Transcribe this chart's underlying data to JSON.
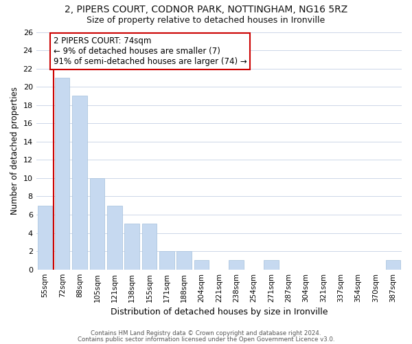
{
  "title": "2, PIPERS COURT, CODNOR PARK, NOTTINGHAM, NG16 5RZ",
  "subtitle": "Size of property relative to detached houses in Ironville",
  "xlabel": "Distribution of detached houses by size in Ironville",
  "ylabel": "Number of detached properties",
  "bar_labels": [
    "55sqm",
    "72sqm",
    "88sqm",
    "105sqm",
    "121sqm",
    "138sqm",
    "155sqm",
    "171sqm",
    "188sqm",
    "204sqm",
    "221sqm",
    "238sqm",
    "254sqm",
    "271sqm",
    "287sqm",
    "304sqm",
    "321sqm",
    "337sqm",
    "354sqm",
    "370sqm",
    "387sqm"
  ],
  "bar_values": [
    7,
    21,
    19,
    10,
    7,
    5,
    5,
    2,
    2,
    1,
    0,
    1,
    0,
    1,
    0,
    0,
    0,
    0,
    0,
    0,
    1
  ],
  "bar_color": "#c6d9f0",
  "bar_edge_color": "#adc6e0",
  "redline_x": 1,
  "redline_color": "#cc0000",
  "ylim": [
    0,
    26
  ],
  "yticks": [
    0,
    2,
    4,
    6,
    8,
    10,
    12,
    14,
    16,
    18,
    20,
    22,
    24,
    26
  ],
  "annotation_line1": "2 PIPERS COURT: 74sqm",
  "annotation_line2": "← 9% of detached houses are smaller (7)",
  "annotation_line3": "91% of semi-detached houses are larger (74) →",
  "annotation_box_color": "#ffffff",
  "annotation_box_edge": "#cc0000",
  "footer1": "Contains HM Land Registry data © Crown copyright and database right 2024.",
  "footer2": "Contains public sector information licensed under the Open Government Licence v3.0.",
  "background_color": "#ffffff",
  "grid_color": "#ccd6e8"
}
